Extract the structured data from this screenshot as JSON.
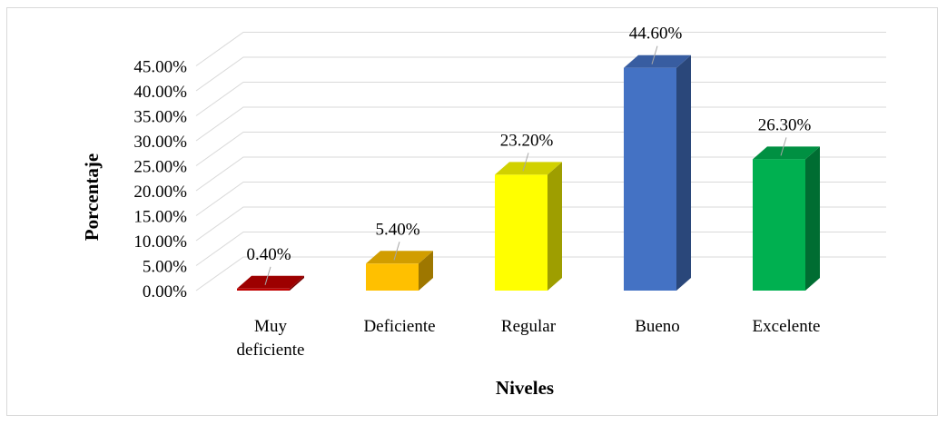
{
  "chart_data": {
    "type": "bar",
    "style": "3d-column",
    "categories": [
      "Muy deficiente",
      "Deficiente",
      "Regular",
      "Bueno",
      "Excelente"
    ],
    "category_lines": [
      [
        "Muy",
        "deficiente"
      ],
      [
        "Deficiente"
      ],
      [
        "Regular"
      ],
      [
        "Bueno"
      ],
      [
        "Excelente"
      ]
    ],
    "values": [
      0.4,
      5.4,
      23.2,
      44.6,
      26.3
    ],
    "value_labels": [
      "0.40%",
      "5.40%",
      "23.20%",
      "44.60%",
      "26.30%"
    ],
    "colors": [
      "#c00000",
      "#ffc000",
      "#ffff00",
      "#4472c4",
      "#00b050"
    ],
    "xlabel": "Niveles",
    "ylabel": "Porcentaje",
    "ylim": [
      0,
      45
    ],
    "y_ticks": [
      0,
      5,
      10,
      15,
      20,
      25,
      30,
      35,
      40,
      45
    ],
    "y_tick_labels": [
      "0.00%",
      "5.00%",
      "10.00%",
      "15.00%",
      "20.00%",
      "25.00%",
      "30.00%",
      "35.00%",
      "40.00%",
      "45.00%"
    ],
    "grid": true,
    "legend": "none"
  }
}
